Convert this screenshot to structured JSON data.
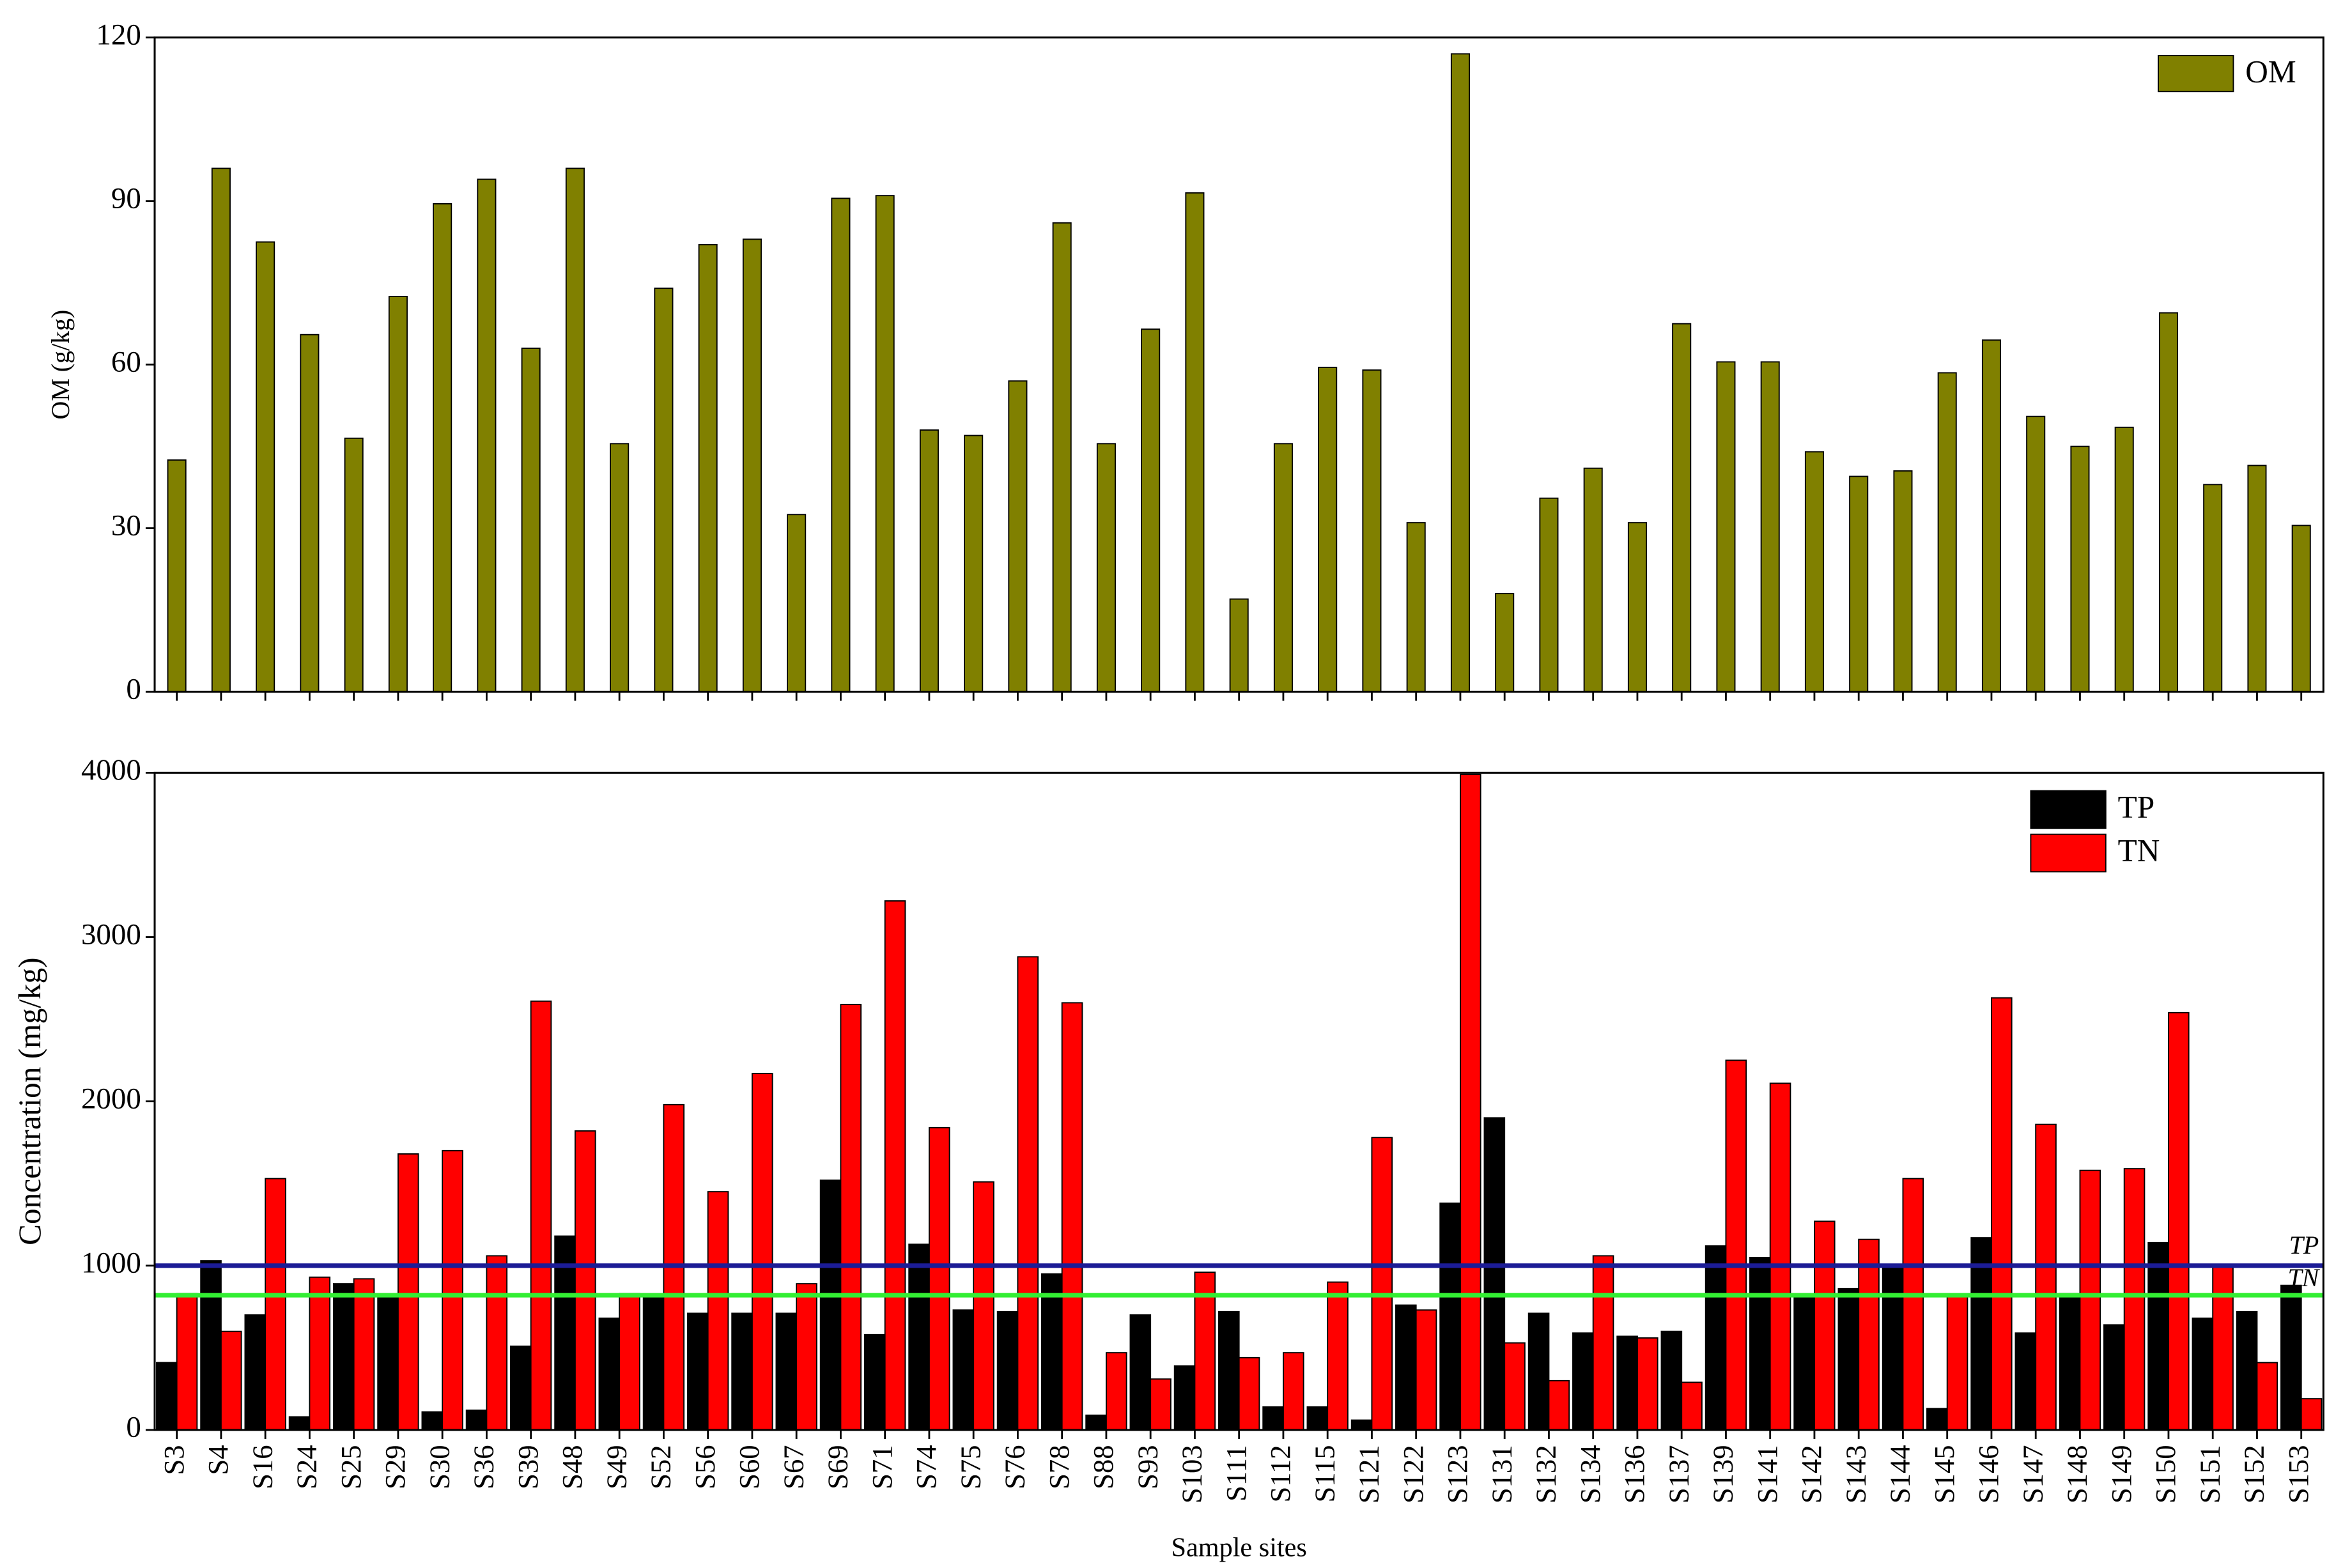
{
  "chart_data": [
    {
      "type": "bar",
      "ylabel": "OM (g/kg)",
      "ylim": [
        0,
        120
      ],
      "yticks": [
        0,
        30,
        60,
        90,
        120
      ],
      "legend": "upper right",
      "categories": [
        null,
        null,
        null,
        null,
        null,
        null,
        null,
        null,
        null,
        null,
        null,
        null,
        null,
        null,
        null,
        null,
        null,
        null,
        null,
        null,
        null,
        null,
        null,
        null,
        null,
        null,
        null,
        null,
        null,
        null,
        null,
        null,
        null,
        null,
        null,
        null,
        null,
        null,
        null,
        null,
        null,
        null,
        null,
        null,
        null,
        null,
        null,
        null,
        null
      ],
      "series": [
        {
          "name": "OM",
          "color": "#808000",
          "values": [
            42.5,
            96,
            82.5,
            65.5,
            46.5,
            72.5,
            89.5,
            94,
            63,
            96,
            45.5,
            74,
            82,
            83,
            32.5,
            90.5,
            91,
            48,
            47,
            57,
            86,
            45.5,
            66.5,
            91.5,
            17,
            45.5,
            59.5,
            59,
            31,
            117,
            18,
            35.5,
            41,
            31,
            67.5,
            60.5,
            60.5,
            44,
            39.5,
            40.5,
            58.5,
            64.5,
            50.5,
            45,
            48.5,
            69.5,
            38,
            41.5,
            30.5
          ]
        }
      ]
    },
    {
      "type": "bar",
      "ylabel": "Concentration (mg/kg)",
      "xlabel": "Sample sites",
      "ylim": [
        0,
        4000
      ],
      "yticks": [
        0,
        1000,
        2000,
        3000,
        4000
      ],
      "legend": "upper right",
      "categories": [
        "S3",
        "S4",
        "S16",
        "S24",
        "S25",
        "S29",
        "S30",
        "S36",
        "S39",
        "S48",
        "S49",
        "S52",
        "S56",
        "S60",
        "S67",
        "S69",
        "S71",
        "S74",
        "S75",
        "S76",
        "S78",
        "S88",
        "S93",
        "S103",
        "S111",
        "S112",
        "S115",
        "S121",
        "S122",
        "S123",
        "S131",
        "S132",
        "S134",
        "S136",
        "S137",
        "S139",
        "S141",
        "S142",
        "S143",
        "S144",
        "S145",
        "S146",
        "S147",
        "S148",
        "S149",
        "S150",
        "S151",
        "S152",
        "S153"
      ],
      "series": [
        {
          "name": "TP",
          "color": "#000000",
          "values": [
            410,
            1030,
            700,
            80,
            890,
            820,
            110,
            120,
            510,
            1180,
            680,
            810,
            710,
            710,
            710,
            1520,
            580,
            1130,
            730,
            720,
            950,
            90,
            700,
            390,
            720,
            140,
            140,
            60,
            760,
            1380,
            1900,
            710,
            590,
            570,
            600,
            1120,
            1050,
            820,
            860,
            1000,
            130,
            1170,
            590,
            830,
            640,
            1140,
            680,
            720,
            880
          ]
        },
        {
          "name": "TN",
          "color": "#ff0000",
          "values": [
            830,
            600,
            1530,
            930,
            920,
            1680,
            1700,
            1060,
            2610,
            1820,
            830,
            1980,
            1450,
            2170,
            890,
            2590,
            3220,
            1840,
            1510,
            2880,
            2600,
            470,
            310,
            960,
            440,
            470,
            900,
            1780,
            730,
            3990,
            530,
            300,
            1060,
            560,
            290,
            2250,
            2110,
            1270,
            1160,
            1530,
            820,
            2630,
            1860,
            1580,
            1590,
            2540,
            1000,
            410,
            190
          ]
        }
      ],
      "reference_lines": [
        {
          "value": 1000,
          "label": "TP",
          "color": "#1c1c96"
        },
        {
          "value": 820,
          "label": "TN",
          "color": "#33ee33"
        }
      ]
    }
  ]
}
